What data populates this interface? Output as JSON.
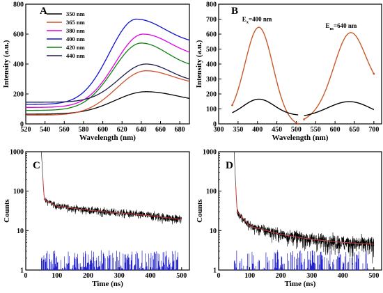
{
  "chart_data": [
    {
      "panel": "A",
      "type": "line",
      "xlabel": "Wavelength (nm)",
      "ylabel": "Intensity (a.u.)",
      "xlim": [
        520,
        690
      ],
      "ylim": [
        0,
        800
      ],
      "xticks": [
        520,
        540,
        560,
        580,
        600,
        620,
        640,
        660,
        680
      ],
      "yticks": [
        0,
        200,
        400,
        600,
        800
      ],
      "legend": "top-left",
      "series": [
        {
          "name": "350 nm",
          "color": "#000000",
          "peak_x": 645,
          "peak_y": 215,
          "base_y": 65,
          "end_y": 170,
          "w_left": 58,
          "w_right": 60
        },
        {
          "name": "365 nm",
          "color": "#d2502a",
          "peak_x": 645,
          "peak_y": 355,
          "base_y": 58,
          "end_y": 285,
          "w_left": 55,
          "w_right": 48
        },
        {
          "name": "380 nm",
          "color": "#e000e0",
          "peak_x": 642,
          "peak_y": 600,
          "base_y": 110,
          "end_y": 480,
          "w_left": 52,
          "w_right": 50
        },
        {
          "name": "400 nm",
          "color": "#1010d0",
          "peak_x": 635,
          "peak_y": 700,
          "base_y": 130,
          "end_y": 560,
          "w_left": 50,
          "w_right": 52
        },
        {
          "name": "420 nm",
          "color": "#108010",
          "peak_x": 640,
          "peak_y": 540,
          "base_y": 90,
          "end_y": 400,
          "w_left": 52,
          "w_right": 48
        },
        {
          "name": "440 nm",
          "color": "#1a1a4a",
          "peak_x": 645,
          "peak_y": 400,
          "base_y": 145,
          "end_y": 300,
          "w_left": 50,
          "w_right": 45
        }
      ]
    },
    {
      "panel": "B",
      "type": "line",
      "xlabel": "Wavelength (nm)",
      "ylabel": "Intensity (a.u.)",
      "xlim": [
        300,
        720
      ],
      "ylim": [
        0,
        800
      ],
      "xticks": [
        300,
        350,
        400,
        450,
        500,
        550,
        600,
        650,
        700
      ],
      "yticks": [
        0,
        100,
        200,
        300,
        400,
        500,
        600,
        700,
        800
      ],
      "annotations": [
        {
          "prefix": "E",
          "sub": "x",
          "suffix": "=400 nm",
          "x": 400,
          "y": 700
        },
        {
          "prefix": "E",
          "sub": "m",
          "suffix": "=640 nm",
          "x": 615,
          "y": 655
        }
      ],
      "series": [
        {
          "color": "#c85a2a",
          "segments": [
            {
              "x0": 335,
              "x1": 505,
              "peak_x": 405,
              "peak_y": 645,
              "sigma": 36,
              "start_y": 125,
              "end_y": 0
            },
            {
              "x0": 520,
              "x1": 700,
              "peak_x": 635,
              "peak_y": 605,
              "sigma": 40,
              "start_y": 30,
              "end_y": 335
            }
          ]
        },
        {
          "color": "#000000",
          "segments": [
            {
              "x0": 335,
              "x1": 505,
              "peak_x": 405,
              "peak_y": 165,
              "sigma": 40,
              "start_y": 75,
              "end_y": 60
            },
            {
              "x0": 520,
              "x1": 700,
              "peak_x": 630,
              "peak_y": 148,
              "sigma": 55,
              "start_y": 55,
              "end_y": 95
            }
          ]
        }
      ]
    },
    {
      "panel": "C",
      "type": "line",
      "xlabel": "Time (ns)",
      "ylabel": "Counts",
      "xscale": "linear",
      "yscale": "log",
      "xlim": [
        0,
        525
      ],
      "ylim": [
        1,
        1000
      ],
      "xticks": [
        0,
        100,
        200,
        300,
        400,
        500
      ],
      "yticks": [
        1,
        10,
        100,
        1000
      ],
      "series": [
        {
          "name": "decay",
          "color": "#000000",
          "start_x": 50,
          "end_x": 500,
          "values_at": {
            "50": 1000,
            "60": 60,
            "100": 42,
            "200": 33,
            "300": 28,
            "400": 24,
            "500": 19
          }
        },
        {
          "name": "fit",
          "color": "#d04040",
          "start_x": 55,
          "end_x": 500
        },
        {
          "name": "residuals",
          "color": "#2020d0",
          "start_x": 50,
          "end_x": 490
        }
      ]
    },
    {
      "panel": "D",
      "type": "line",
      "xlabel": "Time (ns)",
      "ylabel": "Counts",
      "xscale": "linear",
      "yscale": "log",
      "xlim": [
        0,
        525
      ],
      "ylim": [
        1,
        1000
      ],
      "xticks": [
        0,
        100,
        200,
        300,
        400,
        500
      ],
      "yticks": [
        1,
        10,
        100,
        1000
      ],
      "series": [
        {
          "name": "decay",
          "color": "#000000",
          "start_x": 50,
          "end_x": 500,
          "values_at": {
            "50": 1000,
            "60": 30,
            "100": 13,
            "200": 8,
            "300": 6,
            "400": 5,
            "500": 4.5
          }
        },
        {
          "name": "fit",
          "color": "#d04040",
          "start_x": 55,
          "end_x": 500
        },
        {
          "name": "residuals",
          "color": "#2020d0",
          "start_x": 50,
          "end_x": 490
        }
      ]
    }
  ]
}
